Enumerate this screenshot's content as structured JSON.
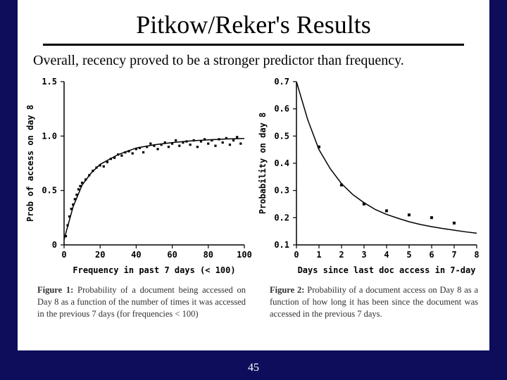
{
  "slide": {
    "title": "Pitkow/Reker's Results",
    "subtitle": "Overall, recency proved to be a stronger predictor than frequency.",
    "page_number": "45"
  },
  "chart_left": {
    "type": "scatter+line",
    "background_color": "#ffffff",
    "plot_bg": "#ffffff",
    "axis_color": "#000000",
    "line_color": "#000000",
    "point_color": "#000000",
    "line_width": 1.5,
    "point_size": 2,
    "title_fontsize": 12,
    "label_fontsize": 12,
    "xlabel": "Frequency in past 7 days (< 100)",
    "ylabel": "Prob of access on day 8",
    "xlim": [
      0,
      100
    ],
    "ylim": [
      0.0,
      1.5
    ],
    "xticks": [
      0,
      20,
      40,
      60,
      80,
      100
    ],
    "yticks": [
      0.0,
      0.5,
      1.0,
      1.5
    ],
    "fit_line": [
      {
        "x": 0,
        "y": 0.05
      },
      {
        "x": 5,
        "y": 0.35
      },
      {
        "x": 10,
        "y": 0.55
      },
      {
        "x": 15,
        "y": 0.66
      },
      {
        "x": 20,
        "y": 0.74
      },
      {
        "x": 30,
        "y": 0.83
      },
      {
        "x": 40,
        "y": 0.89
      },
      {
        "x": 50,
        "y": 0.92
      },
      {
        "x": 60,
        "y": 0.94
      },
      {
        "x": 70,
        "y": 0.955
      },
      {
        "x": 80,
        "y": 0.965
      },
      {
        "x": 90,
        "y": 0.973
      },
      {
        "x": 100,
        "y": 0.978
      }
    ],
    "points": [
      {
        "x": 1,
        "y": 0.08
      },
      {
        "x": 2,
        "y": 0.18
      },
      {
        "x": 3,
        "y": 0.26
      },
      {
        "x": 4,
        "y": 0.33
      },
      {
        "x": 5,
        "y": 0.37
      },
      {
        "x": 6,
        "y": 0.42
      },
      {
        "x": 7,
        "y": 0.46
      },
      {
        "x": 8,
        "y": 0.51
      },
      {
        "x": 9,
        "y": 0.54
      },
      {
        "x": 10,
        "y": 0.57
      },
      {
        "x": 12,
        "y": 0.6
      },
      {
        "x": 14,
        "y": 0.64
      },
      {
        "x": 16,
        "y": 0.68
      },
      {
        "x": 18,
        "y": 0.71
      },
      {
        "x": 20,
        "y": 0.73
      },
      {
        "x": 22,
        "y": 0.72
      },
      {
        "x": 24,
        "y": 0.76
      },
      {
        "x": 26,
        "y": 0.79
      },
      {
        "x": 28,
        "y": 0.8
      },
      {
        "x": 30,
        "y": 0.83
      },
      {
        "x": 32,
        "y": 0.82
      },
      {
        "x": 34,
        "y": 0.85
      },
      {
        "x": 36,
        "y": 0.86
      },
      {
        "x": 38,
        "y": 0.84
      },
      {
        "x": 40,
        "y": 0.88
      },
      {
        "x": 42,
        "y": 0.89
      },
      {
        "x": 44,
        "y": 0.85
      },
      {
        "x": 46,
        "y": 0.9
      },
      {
        "x": 48,
        "y": 0.93
      },
      {
        "x": 50,
        "y": 0.91
      },
      {
        "x": 52,
        "y": 0.88
      },
      {
        "x": 54,
        "y": 0.92
      },
      {
        "x": 56,
        "y": 0.94
      },
      {
        "x": 58,
        "y": 0.9
      },
      {
        "x": 60,
        "y": 0.93
      },
      {
        "x": 62,
        "y": 0.96
      },
      {
        "x": 64,
        "y": 0.91
      },
      {
        "x": 66,
        "y": 0.94
      },
      {
        "x": 68,
        "y": 0.95
      },
      {
        "x": 70,
        "y": 0.92
      },
      {
        "x": 72,
        "y": 0.96
      },
      {
        "x": 74,
        "y": 0.9
      },
      {
        "x": 76,
        "y": 0.95
      },
      {
        "x": 78,
        "y": 0.97
      },
      {
        "x": 80,
        "y": 0.93
      },
      {
        "x": 82,
        "y": 0.96
      },
      {
        "x": 84,
        "y": 0.91
      },
      {
        "x": 86,
        "y": 0.97
      },
      {
        "x": 88,
        "y": 0.94
      },
      {
        "x": 90,
        "y": 0.98
      },
      {
        "x": 92,
        "y": 0.92
      },
      {
        "x": 94,
        "y": 0.96
      },
      {
        "x": 96,
        "y": 0.99
      },
      {
        "x": 98,
        "y": 0.93
      }
    ],
    "caption_label": "Figure 1:",
    "caption_text": " Probability of a document being accessed on Day 8 as a function of the number of times it was accessed in the previous 7 days (for frequencies < 100)"
  },
  "chart_right": {
    "type": "scatter+line",
    "background_color": "#ffffff",
    "plot_bg": "#ffffff",
    "axis_color": "#000000",
    "line_color": "#000000",
    "point_color": "#000000",
    "line_width": 1.5,
    "point_size": 2.5,
    "title_fontsize": 12,
    "label_fontsize": 12,
    "xlabel": "Days since last doc access in 7-day",
    "ylabel": "Probability on day 8",
    "xlim": [
      0,
      8
    ],
    "ylim": [
      0.1,
      0.7
    ],
    "xticks": [
      0,
      1,
      2,
      3,
      4,
      5,
      6,
      7,
      8
    ],
    "yticks": [
      0.1,
      0.2,
      0.3,
      0.4,
      0.5,
      0.6,
      0.7
    ],
    "fit_line": [
      {
        "x": 0.0,
        "y": 0.7
      },
      {
        "x": 0.5,
        "y": 0.56
      },
      {
        "x": 1.0,
        "y": 0.45
      },
      {
        "x": 1.5,
        "y": 0.38
      },
      {
        "x": 2.0,
        "y": 0.325
      },
      {
        "x": 2.5,
        "y": 0.285
      },
      {
        "x": 3.0,
        "y": 0.255
      },
      {
        "x": 3.5,
        "y": 0.23
      },
      {
        "x": 4.0,
        "y": 0.212
      },
      {
        "x": 4.5,
        "y": 0.198
      },
      {
        "x": 5.0,
        "y": 0.185
      },
      {
        "x": 5.5,
        "y": 0.175
      },
      {
        "x": 6.0,
        "y": 0.167
      },
      {
        "x": 6.5,
        "y": 0.16
      },
      {
        "x": 7.0,
        "y": 0.154
      },
      {
        "x": 7.5,
        "y": 0.148
      },
      {
        "x": 8.0,
        "y": 0.143
      }
    ],
    "points": [
      {
        "x": 1,
        "y": 0.46
      },
      {
        "x": 2,
        "y": 0.32
      },
      {
        "x": 3,
        "y": 0.25
      },
      {
        "x": 4,
        "y": 0.225
      },
      {
        "x": 5,
        "y": 0.21
      },
      {
        "x": 6,
        "y": 0.2
      },
      {
        "x": 7,
        "y": 0.18
      }
    ],
    "caption_label": "Figure 2:",
    "caption_text": " Probability of a document access on Day 8 as a function of how long it has been since the document was accessed in the previous 7 days."
  }
}
